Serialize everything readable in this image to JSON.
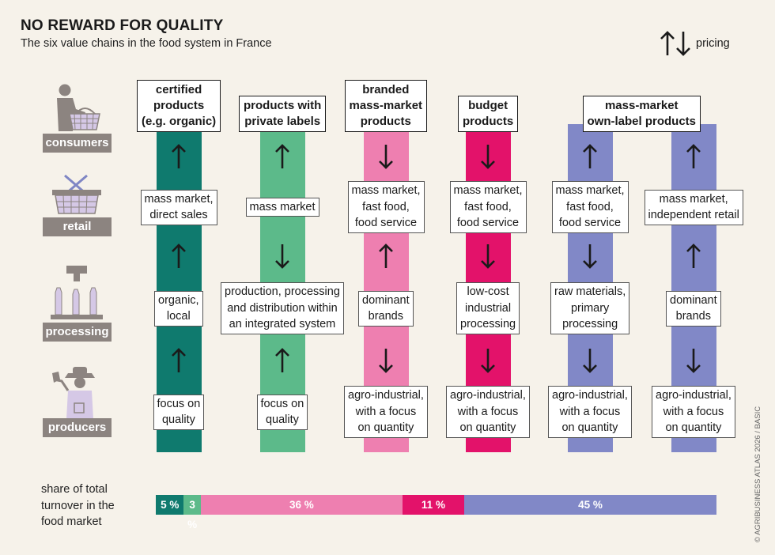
{
  "title": "NO REWARD FOR QUALITY",
  "subtitle": "The six value chains in the food system in France",
  "legend": {
    "icon": "up-down-arrows-icon",
    "label": "pricing"
  },
  "levels": {
    "consumers": "consumers",
    "retail": "retail",
    "processing": "processing",
    "producers": "producers"
  },
  "colors": {
    "certified": "#0f7a6e",
    "private_label": "#5cba8a",
    "branded": "#ee7fb0",
    "budget": "#e3126a",
    "own_label": "#8188c7",
    "level_label": "#8c8480",
    "background": "#f6f2ea"
  },
  "chains": [
    {
      "header": "certified products (e.g. organic)",
      "header_lines": [
        "certified",
        "products",
        "(e.g. organic)"
      ],
      "retail_lines": [
        "mass market,",
        "direct sales"
      ],
      "processing_lines": [
        "organic,",
        "local"
      ],
      "producers_lines": [
        "focus on",
        "quality"
      ],
      "arrows": [
        "up",
        "up",
        "up"
      ]
    },
    {
      "header": "products with private labels",
      "header_lines": [
        "products with",
        "private labels"
      ],
      "retail_lines": [
        "mass market"
      ],
      "processing_lines": [
        "production, processing",
        "and distribution within",
        "an integrated system"
      ],
      "producers_lines": [
        "focus on",
        "quality"
      ],
      "arrows": [
        "up",
        "down",
        "up"
      ]
    },
    {
      "header": "branded mass-market products",
      "header_lines": [
        "branded",
        "mass-market",
        "products"
      ],
      "retail_lines": [
        "mass market,",
        "fast food,",
        "food service"
      ],
      "processing_lines": [
        "dominant",
        "brands"
      ],
      "producers_lines": [
        "agro-industrial,",
        "with a focus",
        "on quantity"
      ],
      "arrows": [
        "down",
        "up",
        "down"
      ]
    },
    {
      "header": "budget products",
      "header_lines": [
        "budget",
        "products"
      ],
      "retail_lines": [
        "mass market,",
        "fast food,",
        "food service"
      ],
      "processing_lines": [
        "low-cost",
        "industrial",
        "processing"
      ],
      "producers_lines": [
        "agro-industrial,",
        "with a focus",
        "on quantity"
      ],
      "arrows": [
        "down",
        "down",
        "down"
      ]
    },
    {
      "header": "mass-market own-label products",
      "header_lines": [
        "mass-market",
        "own-label products"
      ],
      "retail_lines": [
        "mass market,",
        "fast food,",
        "food service"
      ],
      "processing_lines": [
        "raw materials,",
        "primary",
        "processing"
      ],
      "producers_lines": [
        "agro-industrial,",
        "with a focus",
        "on quantity"
      ],
      "arrows": [
        "up",
        "down",
        "down"
      ]
    },
    {
      "header": "",
      "header_lines": [],
      "retail_lines": [
        "mass market,",
        "independent retail"
      ],
      "processing_lines": [
        "dominant",
        "brands"
      ],
      "producers_lines": [
        "agro-industrial,",
        "with a focus",
        "on quantity"
      ],
      "arrows": [
        "up",
        "up",
        "down"
      ]
    }
  ],
  "share": {
    "label_lines": [
      "share of total",
      "turnover in the",
      "food market"
    ],
    "segments": [
      {
        "label": "5 %",
        "value": 5
      },
      {
        "label": "3 %",
        "value": 3
      },
      {
        "label": "36 %",
        "value": 36
      },
      {
        "label": "11 %",
        "value": 11
      },
      {
        "label": "45 %",
        "value": 45
      }
    ]
  },
  "credit": "© AGRIBUSINESS ATLAS 2026 / BASIC",
  "icons": {
    "consumers": "shopper-with-basket-icon",
    "retail": "crossed-basket-icon",
    "processing": "bottling-machine-icon",
    "producers": "farmer-with-spade-icon"
  }
}
